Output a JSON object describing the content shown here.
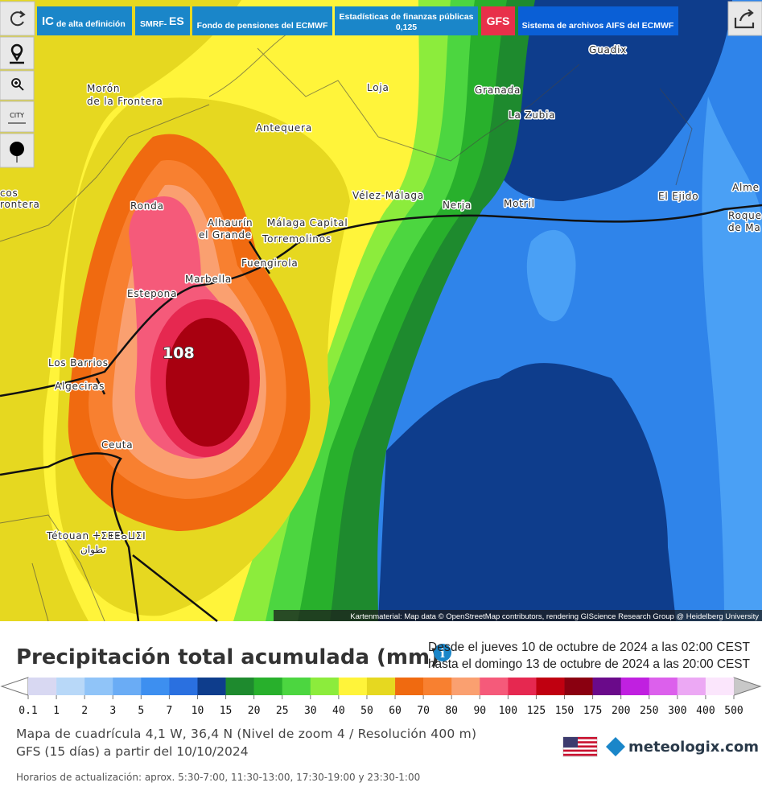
{
  "toolbar": {
    "ic": "IC",
    "ic_sub": "de alta definición",
    "smrf": "SMRF-",
    "smrf_sub": "ES",
    "fondo": "Fondo de pensiones del ECMWF",
    "estadisticas": "Estadísticas de finanzas públicas",
    "estadisticas_res": "0,125",
    "gfs": "GFS",
    "sistema": "Sistema de archivos AIFS del ECMWF",
    "city": "CITY"
  },
  "map": {
    "labels": [
      "Guadix",
      "Morón",
      "de la Frontera",
      "Loja",
      "Granada",
      "La Zubia",
      "Antequera",
      "Ronda",
      "Vélez-Málaga",
      "Nerja",
      "Motril",
      "El Ejido",
      "Alme",
      "Roque",
      "de Ma",
      "Alhaurín",
      "el Grande",
      "Málaga Capital",
      "Torremolinos",
      "Fuengirola",
      "Marbella",
      "Estepona",
      "Los Barrios",
      "Algeciras",
      "Ceuta",
      "Tétouan ⵜⵉⵟⵟⴰⵡⵉⵏ",
      "تطوان",
      "cos",
      "rontera"
    ],
    "max_value": "108",
    "attribution": "Kartenmaterial: Map data © OpenStreetMap contributors, rendering GIScience Research Group @ Heidelberg University"
  },
  "legend": {
    "title": "Precipitación total acumulada (mm)",
    "from": "Desde el jueves 10 de octubre de 2024 a  las 02:00  CEST",
    "to": "hasta el domingo 13 de octubre de 2024 a  las 20:00  CEST",
    "labels": [
      "0.1",
      "1",
      "2",
      "3",
      "5",
      "7",
      "10",
      "15",
      "20",
      "25",
      "30",
      "40",
      "50",
      "60",
      "70",
      "80",
      "90",
      "100",
      "125",
      "150",
      "175",
      "200",
      "250",
      "300",
      "400",
      "500"
    ],
    "colors": [
      "#d8d8f2",
      "#b8d8f8",
      "#90c4f8",
      "#6aacf5",
      "#3d8ff0",
      "#2a70e0",
      "#0e3d8c",
      "#1e8a2e",
      "#28b02c",
      "#4cd640",
      "#8cec3c",
      "#fff43a",
      "#e6d820",
      "#f06a10",
      "#f88030",
      "#faa070",
      "#f55a7a",
      "#e62850",
      "#c00010",
      "#8a0010",
      "#6a0a8a",
      "#c020e0",
      "#dc60ec",
      "#eca8f4",
      "#fbe6fc"
    ]
  },
  "footer": {
    "grid": "Mapa de cuadrícula 4,1 W, 36,4 N (Nivel de zoom 4 / Resolución 400 m)",
    "model": "GFS (15 días) a partir del 10/10/2024",
    "brand": "meteologix.com",
    "updates": "Horarios de actualización: aprox. 5:30-7:00, 11:30-13:00, 17:30-19:00 y 23:30-1:00"
  }
}
